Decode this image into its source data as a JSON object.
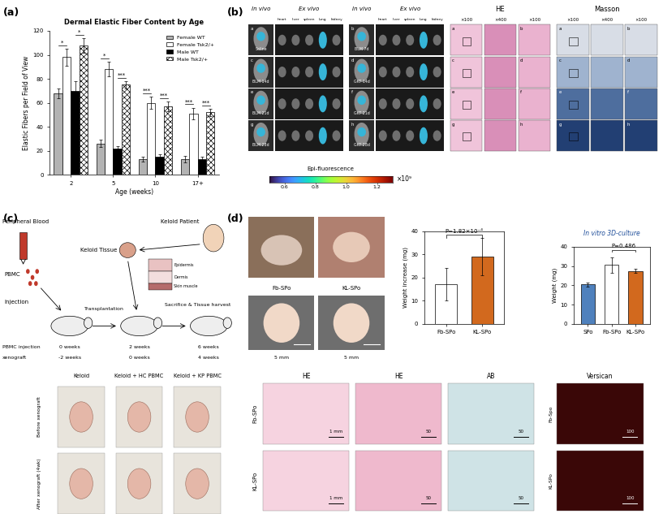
{
  "panel_labels": [
    "(a)",
    "(b)",
    "(c)",
    "(d)"
  ],
  "chart_data": [
    {
      "type": "bar",
      "title": "Dermal Elastic Fiber Content by Age",
      "x_label": "Age (weeks)",
      "y_label": "Elastic Fibers per Field of View",
      "categories": [
        "2",
        "5",
        "10",
        "17+"
      ],
      "series": [
        {
          "name": "Female WT",
          "color": "#b3b3b3",
          "values": [
            68,
            26,
            13,
            13
          ],
          "errors": [
            4,
            3,
            2,
            3
          ]
        },
        {
          "name": "Female Tsk2/+",
          "color": "#ffffff",
          "values": [
            98,
            88,
            60,
            51
          ],
          "errors": [
            7,
            6,
            5,
            5
          ]
        },
        {
          "name": "Male WT",
          "color": "#000000",
          "values": [
            70,
            22,
            15,
            13
          ],
          "errors": [
            8,
            2,
            2,
            2
          ]
        },
        {
          "name": "Male Tsk2/+",
          "color": "#ffffff",
          "values": [
            108,
            75,
            57,
            52
          ],
          "errors": [
            6,
            3,
            4,
            3
          ]
        }
      ],
      "significance": [
        [
          "*",
          "*"
        ],
        [
          "*",
          "***"
        ],
        [
          "***",
          "***"
        ],
        [
          "***",
          "***"
        ]
      ],
      "ylim": [
        0,
        120
      ],
      "yticks": [
        0,
        20,
        40,
        60,
        80,
        100,
        120
      ],
      "legend": "upper right"
    },
    {
      "type": "bar",
      "y_label": "Weight increase (mg)",
      "categories": [
        "Fb-SPo",
        "KL-SPo"
      ],
      "values": [
        17,
        29
      ],
      "errors": [
        7,
        8
      ],
      "colors": [
        "#ffffff",
        "#d2691e"
      ],
      "ylim": [
        0,
        40
      ],
      "yticks": [
        0,
        10,
        20,
        30,
        40
      ],
      "annotation": "P=1.82×10⁻⁴"
    },
    {
      "type": "bar",
      "title": "In vitro 3D-culture",
      "y_label": "Weight (mg)",
      "categories": [
        "SPo",
        "Fb-SPo",
        "KL-SPo"
      ],
      "values": [
        20.5,
        30.5,
        27.5
      ],
      "errors": [
        1,
        4,
        1
      ],
      "colors": [
        "#4f81bd",
        "#ffffff",
        "#d2691e"
      ],
      "ylim": [
        0,
        40
      ],
      "yticks": [
        0,
        10,
        20,
        30,
        40
      ],
      "annotation": "P=0.486"
    }
  ],
  "panel_b": {
    "columns": [
      "In vivo",
      "Ex vivo",
      "In vivo",
      "Ex vivo"
    ],
    "organs": [
      "heart",
      "liver",
      "spleen",
      "lung",
      "kidney"
    ],
    "groups": [
      "Saline",
      "BLM 7d",
      "BLM 14d",
      "GKT 14d",
      "BLM 21d",
      "GKT 21d",
      "BLM 28d",
      "GKT 28d"
    ],
    "letters": [
      "a",
      "b",
      "c",
      "d",
      "e",
      "f",
      "g",
      "h"
    ],
    "colorbar": {
      "label": "Epi-fluorescence",
      "multiplier": "×10⁹",
      "range": [
        0.5,
        1.3
      ],
      "ticks": [
        0.6,
        0.8,
        {
          "value": 1,
          "label": "1.0"
        },
        1.2
      ]
    },
    "stains": [
      {
        "name": "HE",
        "magnifications": [
          "×100",
          "×400",
          "×100"
        ]
      },
      {
        "name": "Masson",
        "magnifications": [
          "×100",
          "×400",
          "×100"
        ]
      }
    ]
  },
  "panel_c": {
    "blood": "Peripheral Blood",
    "pbmc": "PBMC",
    "injection": "Injection",
    "patient": "Keloid Patient",
    "tissue": "Keloid Tissue",
    "transplant": "Transplantation",
    "harvest": "Sacrifice & Tissue harvest",
    "layers": [
      "Epidermis",
      "Dermis",
      "Skin muscle"
    ],
    "timeline_rows": [
      "PBMC injection",
      "xenograft"
    ],
    "timeline_points": [
      [
        "0 weeks",
        "-2 weeks"
      ],
      [
        "2 weeks",
        "0 weeks"
      ],
      [
        "6 weeks",
        "4 weeks"
      ]
    ],
    "columns": [
      "Keloid",
      "Keloid + HC PBMC",
      "Keloid + KP PBMC"
    ],
    "rows": [
      "Before xenograft",
      "After xenograft (4wk)"
    ]
  },
  "panel_d": {
    "photo_labels": [
      "Fb-SPo",
      "KL-SPo"
    ],
    "photo_scale": "5 mm",
    "stains": [
      "HE",
      "HE",
      "AB",
      "Versican"
    ],
    "scales": [
      "1 mm",
      "50",
      "50",
      "100"
    ],
    "rows": [
      "Fb-SPo",
      "KL-SPo"
    ],
    "versican_rows": [
      "Fb-Spo",
      "KL-SPo"
    ]
  }
}
